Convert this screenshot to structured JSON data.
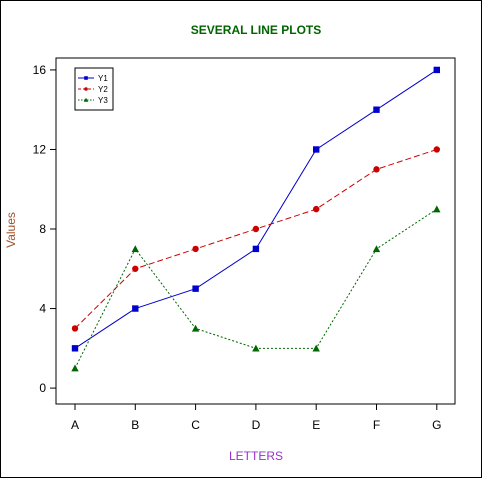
{
  "chart_data": {
    "type": "line",
    "title": "SEVERAL LINE PLOTS",
    "xlabel": "LETTERS",
    "ylabel": "Values",
    "categories": [
      "A",
      "B",
      "C",
      "D",
      "E",
      "F",
      "G"
    ],
    "ylim": [
      -0.8,
      16.6
    ],
    "yticks": [
      0,
      4,
      8,
      12,
      16
    ],
    "grid": false,
    "legend_position": "top-left",
    "series": [
      {
        "name": "Y1",
        "values": [
          2,
          4,
          5,
          7,
          12,
          14,
          16
        ],
        "color": "#0000cc",
        "marker": "square",
        "line": "solid"
      },
      {
        "name": "Y2",
        "values": [
          3,
          6,
          7,
          8,
          9,
          11,
          12
        ],
        "color": "#cc0000",
        "marker": "circle",
        "line": "dashed"
      },
      {
        "name": "Y3",
        "values": [
          1,
          7,
          3,
          2,
          2,
          7,
          9
        ],
        "color": "#006600",
        "marker": "triangle",
        "line": "dotted"
      }
    ],
    "colors": {
      "title": "#006400",
      "xlabel": "#9932cc",
      "ylabel": "#a0522d"
    }
  }
}
